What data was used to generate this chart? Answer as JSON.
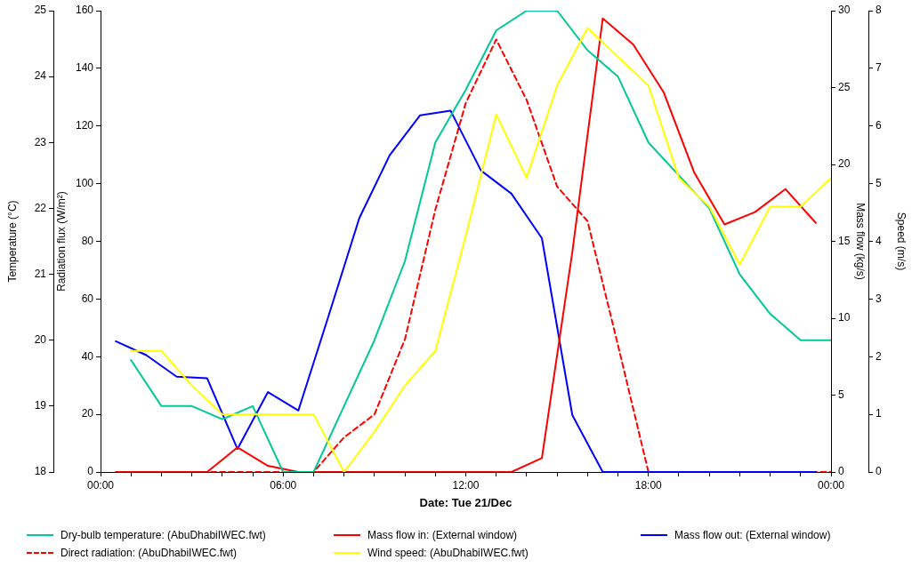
{
  "chart_data": [
    {
      "type": "line",
      "xlabel": "Date: Tue 21/Dec",
      "ylabel": "Temperature (°C)",
      "y3label": "Radiation flux (W/m²)",
      "y2label": "Mass flow (kg/s)",
      "xlim": [
        0,
        24
      ],
      "xticks": [
        {
          "value": 0,
          "label": "00:00"
        },
        {
          "value": 1,
          "label": null
        },
        {
          "value": 2,
          "label": null
        },
        {
          "value": 3,
          "label": null
        },
        {
          "value": 4,
          "label": null
        },
        {
          "value": 5,
          "label": null
        },
        {
          "value": 6,
          "label": "06:00"
        },
        {
          "value": 7,
          "label": null
        },
        {
          "value": 8,
          "label": null
        },
        {
          "value": 9,
          "label": null
        },
        {
          "value": 10,
          "label": null
        },
        {
          "value": 11,
          "label": null
        },
        {
          "value": 12,
          "label": "12:00"
        },
        {
          "value": 13,
          "label": null
        },
        {
          "value": 14,
          "label": null
        },
        {
          "value": 15,
          "label": null
        },
        {
          "value": 16,
          "label": null
        },
        {
          "value": 17,
          "label": null
        },
        {
          "value": 18,
          "label": "18:00"
        },
        {
          "value": 19,
          "label": null
        },
        {
          "value": 20,
          "label": null
        },
        {
          "value": 21,
          "label": null
        },
        {
          "value": 22,
          "label": null
        },
        {
          "value": 23,
          "label": null
        },
        {
          "value": 24,
          "label": "00:00"
        }
      ],
      "ylim": [
        18,
        25
      ],
      "yticks": [
        18,
        19,
        20,
        21,
        22,
        23,
        24,
        25
      ],
      "y3lim": [
        0,
        160
      ],
      "y3ticks": [
        0,
        20,
        40,
        60,
        80,
        100,
        120,
        140,
        160
      ],
      "y2lim": [
        0,
        30
      ],
      "y2ticks": [
        0,
        5,
        10,
        15,
        20,
        25,
        30
      ],
      "legend": "bottom",
      "marker": "none",
      "series": [
        {
          "name": "Dry-bulb temperature: (AbuDhabiIWEC.fwt)",
          "color": "#00c896",
          "x": [
            1,
            2,
            3,
            4,
            5,
            6,
            7,
            8,
            9,
            10,
            11,
            12,
            13,
            14,
            15,
            16,
            17,
            18,
            19,
            20,
            21,
            22,
            23,
            24
          ],
          "values": [
            19.7,
            19.0,
            19.0,
            18.8,
            19.0,
            18.0,
            18.0,
            19.0,
            20.0,
            21.2,
            23.0,
            23.8,
            24.7,
            25.0,
            25.0,
            24.4,
            24.0,
            23.0,
            22.5,
            22.0,
            21.0,
            20.4,
            20.0,
            20.0
          ]
        },
        {
          "name": "Mass flow in: (External window)",
          "color": "#ff0000",
          "axis": "y2",
          "x": [
            0.5,
            1.5,
            2.5,
            3.5,
            4.5,
            5.5,
            6.5,
            7.5,
            8.5,
            9.5,
            10.5,
            11.5,
            12.5,
            13.5,
            14.5,
            15.5,
            16.5,
            17.5,
            18.5,
            19.5,
            20.5,
            21.5,
            22.5,
            23.5
          ],
          "values": [
            0,
            0,
            0,
            0,
            1.6,
            0.4,
            0,
            0,
            0,
            0,
            0,
            0,
            0,
            0,
            0.9,
            14.3,
            29.5,
            27.8,
            24.7,
            19.5,
            16.1,
            16.9,
            18.4,
            16.2
          ]
        },
        {
          "name": "Mass flow out: (External window)",
          "color": "#0000ff",
          "axis": "y2",
          "x": [
            0.5,
            1.5,
            2.5,
            3.5,
            4.5,
            5.5,
            6.5,
            7.5,
            8.5,
            9.5,
            10.5,
            11.5,
            12.5,
            13.5,
            14.5,
            15.5,
            16.5,
            17.5,
            18.5,
            19.5,
            20.5,
            21.5,
            22.5,
            23.5
          ],
          "values": [
            8.5,
            7.6,
            6.2,
            6.1,
            1.5,
            5.2,
            4.0,
            10.2,
            16.5,
            20.6,
            23.2,
            23.5,
            19.6,
            18.1,
            15.2,
            3.7,
            0,
            0,
            0,
            0,
            0,
            0,
            0,
            0
          ]
        },
        {
          "name": "Direct radiation: (AbuDhabiIWEC.fwt)",
          "color": "#ff0000",
          "axis": "y3",
          "line_style": "dashed",
          "x": [
            1,
            2,
            3,
            4,
            5,
            6,
            7,
            8,
            9,
            10,
            11,
            12,
            13,
            14,
            15,
            16,
            17,
            18,
            19,
            20,
            21,
            22,
            23,
            24
          ],
          "values": [
            0,
            0,
            0,
            0,
            0,
            0,
            0,
            12,
            20,
            46,
            91,
            128,
            150,
            129,
            99,
            87,
            44,
            0,
            0,
            0,
            0,
            0,
            0,
            0
          ]
        }
      ]
    },
    {
      "type": "line",
      "ylabel": "Speed (m/s)",
      "xlim": [
        0,
        24
      ],
      "ylim": [
        0,
        8
      ],
      "yticks": [
        0,
        1,
        2,
        3,
        4,
        5,
        6,
        7,
        8
      ],
      "tick_labels": "y",
      "legend": "bottom",
      "marker": "none",
      "series": [
        {
          "name": "Wind speed: (AbuDhabiIWEC.fwt)",
          "color": "#ffff00",
          "x": [
            1,
            2,
            3,
            4,
            5,
            6,
            7,
            8,
            9,
            10,
            11,
            12,
            13,
            14,
            15,
            16,
            17,
            18,
            19,
            20,
            21,
            22,
            23,
            24
          ],
          "values": [
            2.1,
            2.1,
            1.5,
            1.0,
            1.0,
            1.0,
            1.0,
            0,
            0.7,
            1.5,
            2.1,
            4.1,
            6.2,
            5.1,
            6.7,
            7.7,
            7.2,
            6.7,
            5.1,
            4.6,
            3.6,
            4.6,
            4.6,
            5.1
          ]
        }
      ]
    }
  ]
}
